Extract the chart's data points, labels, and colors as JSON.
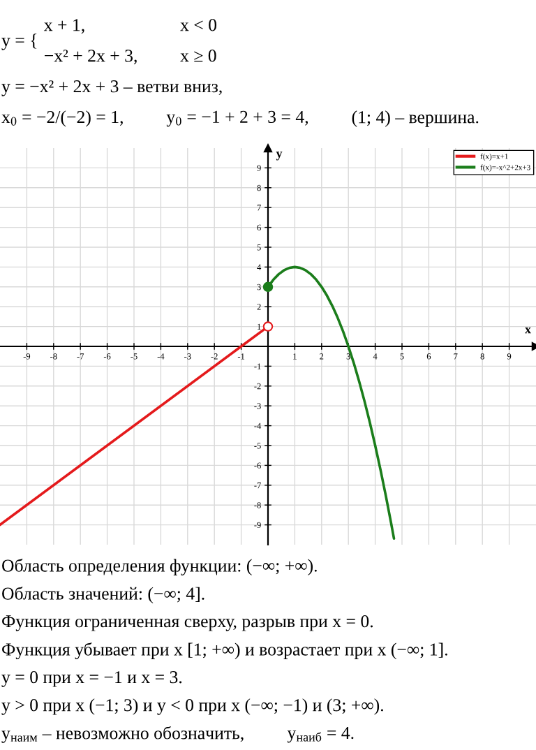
{
  "chart_data": {
    "type": "line",
    "title": "y = {\tx + 1,\tx < 0\n\t−x² + 2x + 3,\tx ≥ 0\ny = −x² + 2x + 3 – ветви вниз,\nx$_{0}$ = −2/(−2) = 1,\ty$_{0}$ = −1 + 2 + 3 = 4,\t(1; 4) – вершина.",
    "xlabel": "x",
    "ylabel": "y",
    "annotations": [
      "Область определения функции: (−∞; +∞).",
      "Область значений: (−∞; 4].",
      "Функция ограниченная сверху, разрыв при x = 0.",
      "Функция убывает при x [1; +∞) и возрастает при x (−∞; 1].",
      "y = 0 при x = −1 и x = 3.",
      "y > 0 при x (−1; 3) и y < 0 при x (−∞; −1) и (3; +∞).",
      "y$_{наим}$ – невозможно обозначить,\ty$_{наиб}$ = 4."
    ],
    "xlim": [
      -10,
      10
    ],
    "ylim": [
      -10,
      10
    ],
    "xticks": [
      -9,
      -8,
      -7,
      -6,
      -5,
      -4,
      -3,
      -2,
      -1,
      1,
      2,
      3,
      4,
      5,
      6,
      7,
      8,
      9
    ],
    "yticks": [
      -9,
      -8,
      -7,
      -6,
      -5,
      -4,
      -3,
      -2,
      -1,
      1,
      2,
      3,
      4,
      5,
      6,
      7,
      8,
      9
    ],
    "grid": true,
    "legend": "top right",
    "series": [
      {
        "name": "f(x)=x+1",
        "color": "#e41a1c",
        "x": [
          -10,
          -1,
          0
        ],
        "values": [
          -9,
          0,
          1
        ]
      },
      {
        "name": "f(x)=-x^2+2x+3",
        "color": "#1b7d1b",
        "x": [
          0,
          0.2,
          0.4,
          0.6,
          0.8,
          1,
          1.2,
          1.4,
          1.6,
          1.8,
          2,
          2.2,
          2.4,
          2.6,
          2.8,
          3,
          3.2,
          3.4,
          3.6,
          3.8,
          4,
          4.2,
          4.4,
          4.6,
          4.7
        ],
        "values": [
          3,
          3.36,
          3.64,
          3.84,
          3.96,
          4,
          3.96,
          3.84,
          3.64,
          3.36,
          3,
          2.56,
          2.04,
          1.44,
          0.76,
          0,
          -0.84,
          -1.76,
          -2.76,
          -3.84,
          -5,
          -6.24,
          -7.56,
          -8.96,
          -9.69
        ]
      },
      {
        "type": "scatter",
        "color": "#e41a1c",
        "colors": [
          "#ffffff"
        ],
        "x": [
          0
        ],
        "values": [
          1
        ],
        "marker": "circle"
      },
      {
        "type": "scatter",
        "color": "#1b7d1b",
        "x": [
          0
        ],
        "values": [
          3
        ],
        "marker": "circle"
      }
    ]
  }
}
